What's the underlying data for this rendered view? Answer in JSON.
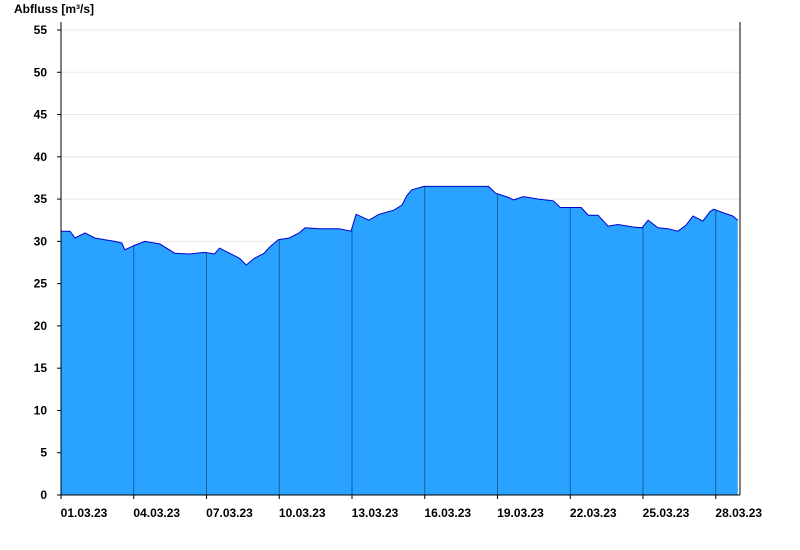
{
  "chart_data": {
    "type": "area",
    "y_label": "Abfluss [m³/s]",
    "x": [
      1.0,
      1.37,
      1.58,
      1.99,
      2.4,
      2.81,
      3.22,
      3.51,
      3.63,
      4.0,
      4.45,
      5.07,
      5.69,
      6.3,
      6.92,
      7.33,
      7.54,
      7.95,
      8.36,
      8.64,
      8.97,
      9.38,
      9.59,
      9.96,
      10.41,
      10.82,
      11.07,
      11.65,
      12.47,
      12.96,
      13.17,
      13.7,
      14.11,
      14.73,
      15.06,
      15.26,
      15.47,
      15.96,
      16.58,
      18.63,
      18.92,
      19.45,
      19.66,
      20.07,
      20.69,
      21.3,
      21.59,
      21.96,
      22.45,
      22.74,
      23.15,
      23.56,
      23.97,
      24.59,
      24.96,
      25.21,
      25.62,
      26.03,
      26.44,
      26.77,
      27.06,
      27.47,
      27.76,
      27.92,
      28.29,
      28.7,
      28.91
    ],
    "series": [
      {
        "name": "Abfluss",
        "color": "#29a3ff",
        "line_color": "#0000cc",
        "values": [
          31.2,
          31.2,
          30.4,
          31.0,
          30.4,
          30.2,
          30.0,
          29.8,
          29.0,
          29.5,
          30.0,
          29.7,
          28.6,
          28.5,
          28.7,
          28.5,
          29.2,
          28.6,
          28.0,
          27.2,
          28.0,
          28.6,
          29.3,
          30.2,
          30.4,
          31.0,
          31.6,
          31.5,
          31.5,
          31.2,
          33.2,
          32.5,
          33.2,
          33.7,
          34.3,
          35.4,
          36.1,
          36.5,
          36.5,
          36.5,
          35.7,
          35.2,
          34.9,
          35.3,
          35.0,
          34.8,
          34.0,
          34.0,
          34.0,
          33.1,
          33.1,
          31.8,
          32.0,
          31.7,
          31.6,
          32.5,
          31.6,
          31.5,
          31.2,
          31.9,
          33.0,
          32.4,
          33.5,
          33.8,
          33.4,
          33.0,
          32.5
        ]
      }
    ],
    "xlim": [
      1,
      29
    ],
    "xticks": [
      {
        "value": 1,
        "label": "01.03.23"
      },
      {
        "value": 4,
        "label": "04.03.23"
      },
      {
        "value": 7,
        "label": "07.03.23"
      },
      {
        "value": 10,
        "label": "10.03.23"
      },
      {
        "value": 13,
        "label": "13.03.23"
      },
      {
        "value": 16,
        "label": "16.03.23"
      },
      {
        "value": 19,
        "label": "19.03.23"
      },
      {
        "value": 22,
        "label": "22.03.23"
      },
      {
        "value": 25,
        "label": "25.03.23"
      },
      {
        "value": 28,
        "label": "28.03.23"
      }
    ],
    "ylim": [
      0,
      55
    ],
    "yticks": [
      0,
      5,
      10,
      15,
      20,
      25,
      30,
      35,
      40,
      45,
      50,
      55
    ],
    "grid": true
  }
}
